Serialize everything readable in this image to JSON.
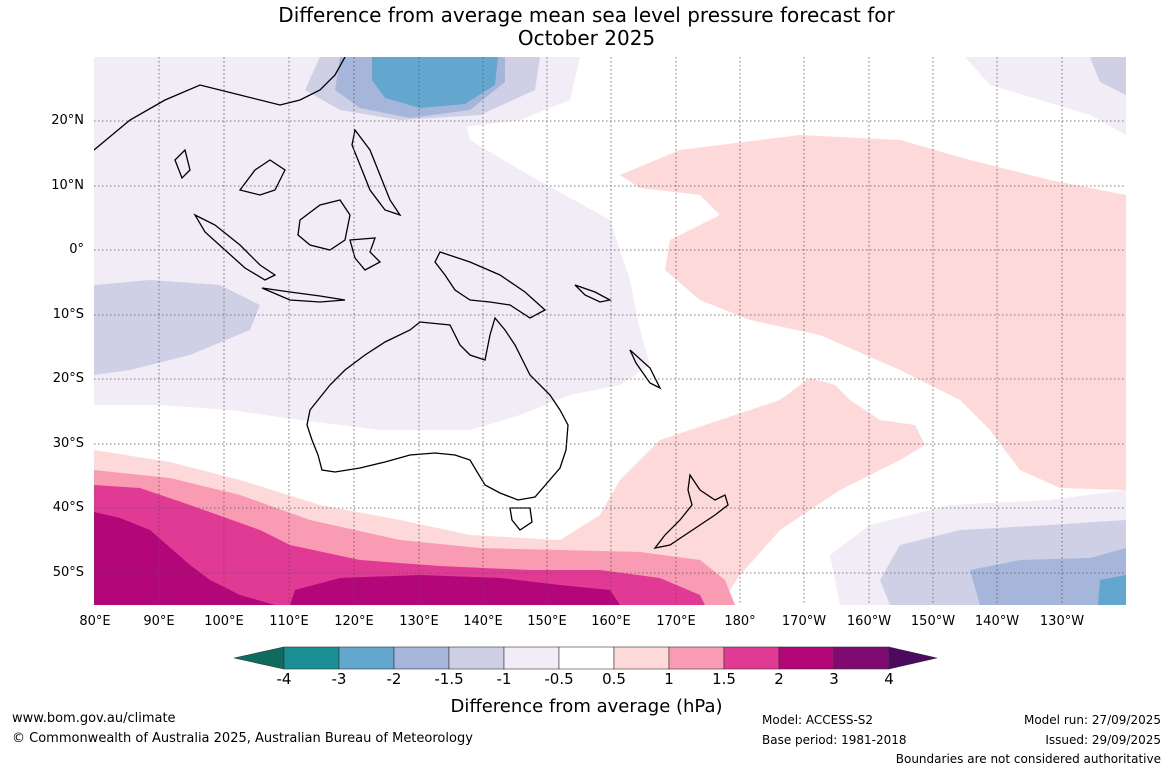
{
  "title": {
    "line1": "Difference from average mean sea level pressure forecast for",
    "line2": "October 2025"
  },
  "map": {
    "lat_labels": [
      "20°N",
      "10°N",
      "0°",
      "10°S",
      "20°S",
      "30°S",
      "40°S",
      "50°S"
    ],
    "lon_labels": [
      "80°E",
      "90°E",
      "100°E",
      "110°E",
      "120°E",
      "130°E",
      "140°E",
      "150°E",
      "160°E",
      "170°E",
      "180°",
      "170°W",
      "160°W",
      "150°W",
      "140°W",
      "130°W"
    ]
  },
  "colorbar": {
    "ticks": [
      "-4",
      "-3",
      "-2",
      "-1.5",
      "-1",
      "-0.5",
      "0.5",
      "1",
      "1.5",
      "2",
      "3",
      "4"
    ],
    "colors": [
      "#0d6b5f",
      "#1a8f94",
      "#63a7cf",
      "#a5b6da",
      "#cfd0e5",
      "#f1ecf5",
      "#ffffff",
      "#fdd9d9",
      "#f89bb3",
      "#e03a95",
      "#b30779",
      "#7f0a72",
      "#4b0a60"
    ],
    "label": "Difference from average (hPa)"
  },
  "footer": {
    "website": "www.bom.gov.au/climate",
    "copyright": "© Commonwealth of Australia 2025, Australian Bureau of Meteorology",
    "model": "Model: ACCESS-S2",
    "base_period": "Base period: 1981-2018",
    "model_run": "Model run: 27/09/2025",
    "issued": "Issued: 29/09/2025",
    "disclaimer": "Boundaries are not considered authoritative"
  }
}
